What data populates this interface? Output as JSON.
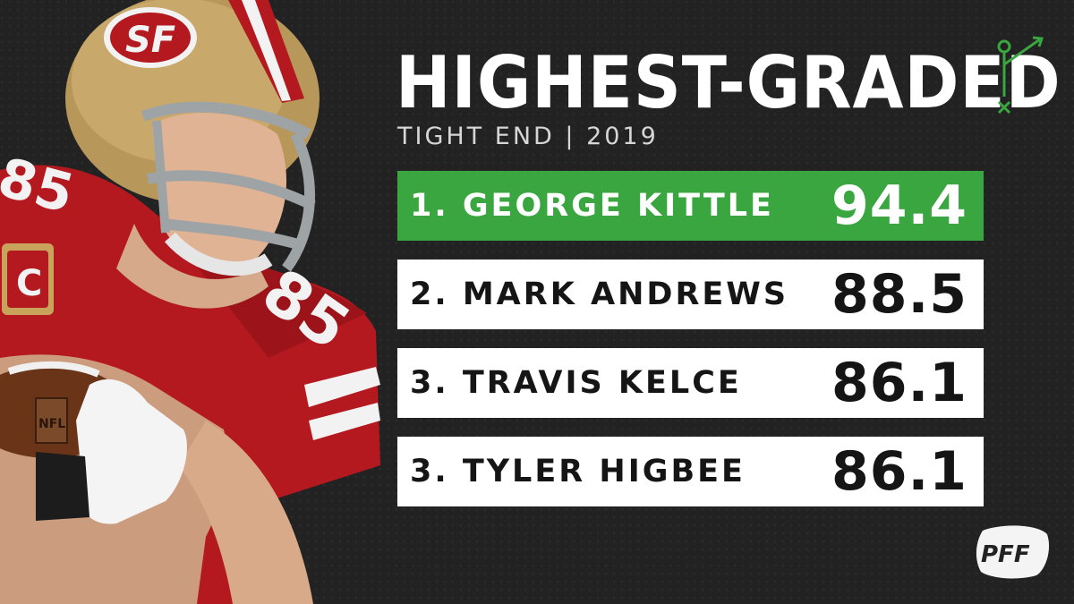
{
  "header": {
    "title": "HIGHEST-GRADED",
    "subtitle": "TIGHT END | 2019"
  },
  "rankings": [
    {
      "label": "1. GEORGE KITTLE",
      "grade": "94.4",
      "highlighted": true
    },
    {
      "label": "2. MARK ANDREWS",
      "grade": "88.5",
      "highlighted": false
    },
    {
      "label": "3. TRAVIS KELCE",
      "grade": "86.1",
      "highlighted": false
    },
    {
      "label": "3. TYLER HIGBEE",
      "grade": "86.1",
      "highlighted": false
    }
  ],
  "photo": {
    "helmet_logo": "SF",
    "jersey_number": "85",
    "patch_letter": "C"
  },
  "brand": {
    "logo_text": "PFF",
    "accent_color": "#3aa640",
    "background_color": "#222222",
    "icons": [
      "play-diagram-icon",
      "pff-logo"
    ]
  }
}
